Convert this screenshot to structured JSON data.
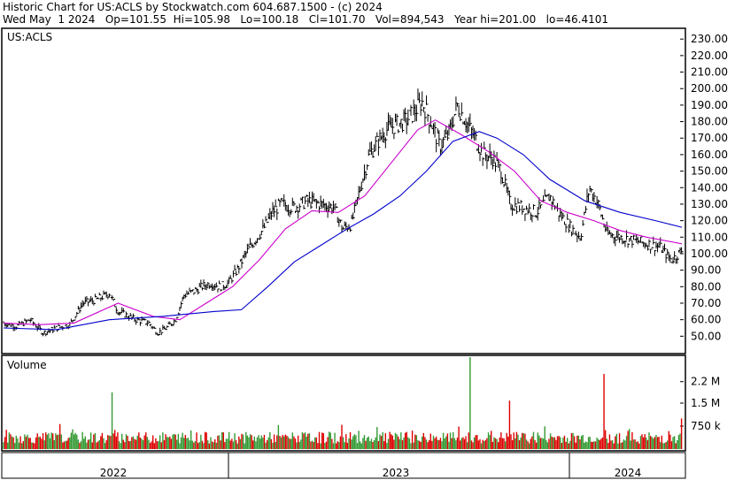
{
  "header": {
    "line1": "Historic Chart for US:ACLS by Stockwatch.com 604.687.1500 - (c) 2024",
    "line2": "Wed May  1 2024   Op=101.55  Hi=105.98   Lo=100.18   Cl=101.70   Vol=894,543   Year hi=201.00   lo=46.4101"
  },
  "chart_data": [
    {
      "type": "line",
      "subtype": "ohlc-price",
      "symbol_label": "US:ACLS",
      "y_ticks": [
        50,
        60,
        70,
        80,
        90,
        100,
        110,
        120,
        130,
        140,
        150,
        160,
        170,
        180,
        190,
        200,
        210,
        220,
        230
      ],
      "y_tick_labels": [
        "50.00",
        "60.00",
        "70.00",
        "80.00",
        "90.00",
        "100.00",
        "110.00",
        "120.00",
        "130.00",
        "140.00",
        "150.00",
        "160.00",
        "170.00",
        "180.00",
        "190.00",
        "200.00",
        "210.00",
        "220.00",
        "230.00"
      ],
      "ylim": [
        40,
        236
      ],
      "x_labels": [
        "2022",
        "2023",
        "2024"
      ],
      "grid": true,
      "close_points": [
        [
          0,
          58
        ],
        [
          15,
          56
        ],
        [
          30,
          60
        ],
        [
          45,
          52
        ],
        [
          60,
          55
        ],
        [
          75,
          57
        ],
        [
          90,
          70
        ],
        [
          105,
          72
        ],
        [
          120,
          76
        ],
        [
          130,
          65
        ],
        [
          150,
          60
        ],
        [
          165,
          58
        ],
        [
          175,
          52
        ],
        [
          185,
          55
        ],
        [
          195,
          60
        ],
        [
          205,
          75
        ],
        [
          215,
          77
        ],
        [
          225,
          80
        ],
        [
          235,
          82
        ],
        [
          245,
          80
        ],
        [
          255,
          82
        ],
        [
          265,
          90
        ],
        [
          275,
          100
        ],
        [
          285,
          108
        ],
        [
          295,
          115
        ],
        [
          305,
          125
        ],
        [
          315,
          130
        ],
        [
          330,
          128
        ],
        [
          345,
          132
        ],
        [
          360,
          130
        ],
        [
          375,
          128
        ],
        [
          385,
          115
        ],
        [
          395,
          118
        ],
        [
          405,
          140
        ],
        [
          415,
          160
        ],
        [
          425,
          168
        ],
        [
          435,
          175
        ],
        [
          445,
          178
        ],
        [
          455,
          180
        ],
        [
          465,
          185
        ],
        [
          475,
          192
        ],
        [
          485,
          180
        ],
        [
          495,
          165
        ],
        [
          505,
          172
        ],
        [
          515,
          190
        ],
        [
          525,
          180
        ],
        [
          535,
          170
        ],
        [
          545,
          160
        ],
        [
          555,
          158
        ],
        [
          565,
          150
        ],
        [
          575,
          130
        ],
        [
          590,
          128
        ],
        [
          605,
          125
        ],
        [
          620,
          135
        ],
        [
          630,
          125
        ],
        [
          645,
          115
        ],
        [
          655,
          110
        ],
        [
          665,
          140
        ],
        [
          675,
          130
        ],
        [
          685,
          112
        ],
        [
          700,
          110
        ],
        [
          715,
          108
        ],
        [
          730,
          106
        ],
        [
          745,
          104
        ],
        [
          758,
          96
        ],
        [
          770,
          102
        ]
      ],
      "series": [
        {
          "name": "",
          "color": "#cc00cc",
          "points": [
            [
              0,
              58
            ],
            [
              40,
              57
            ],
            [
              80,
              58
            ],
            [
              130,
              70
            ],
            [
              170,
              62
            ],
            [
              200,
              60
            ],
            [
              230,
              70
            ],
            [
              260,
              80
            ],
            [
              290,
              96
            ],
            [
              320,
              115
            ],
            [
              350,
              126
            ],
            [
              380,
              125
            ],
            [
              410,
              135
            ],
            [
              440,
              155
            ],
            [
              470,
              175
            ],
            [
              490,
              181
            ],
            [
              520,
              172
            ],
            [
              550,
              162
            ],
            [
              580,
              150
            ],
            [
              610,
              132
            ],
            [
              640,
              125
            ],
            [
              670,
              120
            ],
            [
              700,
              114
            ],
            [
              730,
              110
            ],
            [
              770,
              106
            ]
          ]
        },
        {
          "name": "",
          "color": "#0000cc",
          "points": [
            [
              0,
              55
            ],
            [
              60,
              54
            ],
            [
              120,
              60
            ],
            [
              180,
              62
            ],
            [
              240,
              65
            ],
            [
              270,
              66
            ],
            [
              300,
              80
            ],
            [
              330,
              95
            ],
            [
              360,
              105
            ],
            [
              390,
              115
            ],
            [
              420,
              124
            ],
            [
              450,
              135
            ],
            [
              480,
              150
            ],
            [
              510,
              168
            ],
            [
              540,
              174
            ],
            [
              560,
              170
            ],
            [
              590,
              160
            ],
            [
              620,
              145
            ],
            [
              660,
              132
            ],
            [
              700,
              125
            ],
            [
              740,
              120
            ],
            [
              770,
              116
            ]
          ]
        }
      ]
    },
    {
      "type": "bar",
      "title": "Volume",
      "y_tick_labels": [
        "750 k",
        "1.5 M",
        "2.2 M"
      ],
      "y_ticks": [
        750000,
        1500000,
        2200000
      ],
      "ylim": [
        0,
        3000000
      ],
      "colors": {
        "up": "#339933",
        "down": "#dd0000"
      },
      "spikes": [
        [
          123,
          1850000
        ],
        [
          530,
          3000000
        ],
        [
          575,
          1580000
        ],
        [
          682,
          2450000
        ],
        [
          770,
          1000000
        ]
      ]
    }
  ]
}
